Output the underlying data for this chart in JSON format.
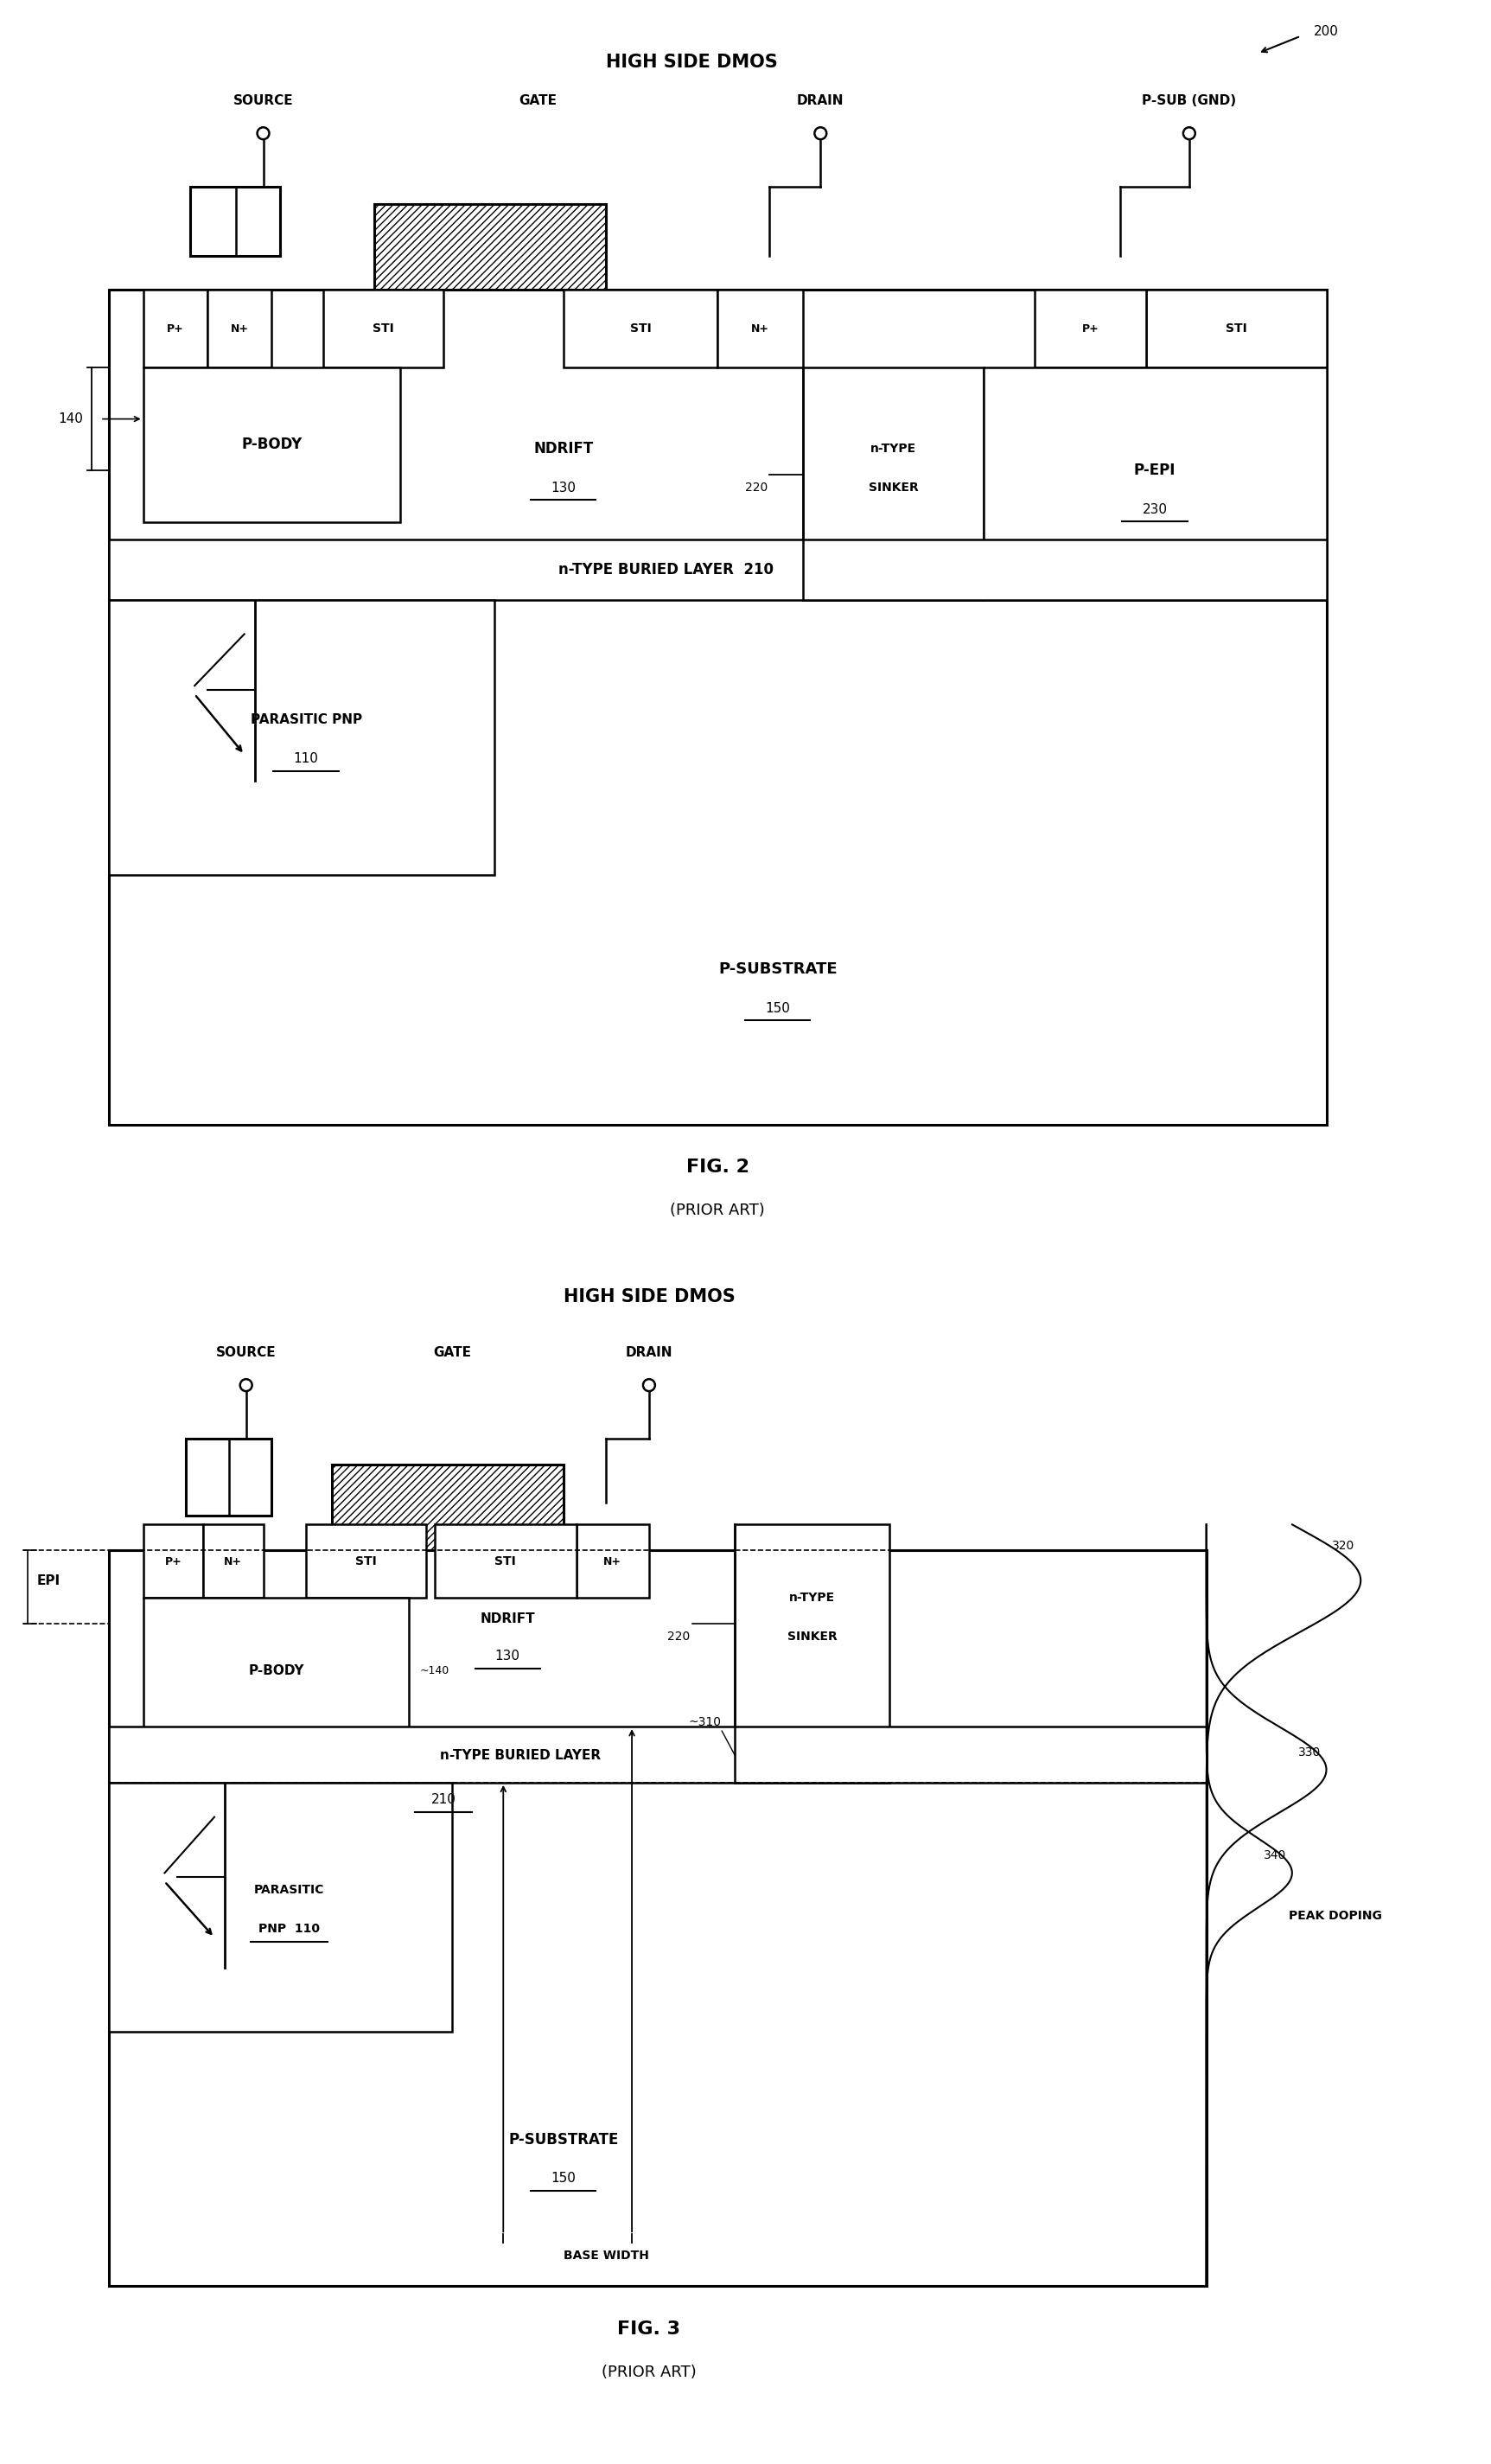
{
  "fig_width": 17.25,
  "fig_height": 28.5,
  "bg_color": "#ffffff",
  "fig2": {
    "title": "HIGH SIDE DMOS",
    "ref_num": "200",
    "source_label": "SOURCE",
    "drain_label": "DRAIN",
    "psub_label": "P-SUB (GND)",
    "gate_label": "GATE",
    "ndrift_label": "NDRIFT",
    "ndrift_num": "130",
    "sinker_label1": "n-TYPE",
    "sinker_label2": "SINKER",
    "sinker_num": "220",
    "pbody_label": "P-BODY",
    "label_140": "140",
    "buried_label": "n-TYPE BURIED LAYER  210",
    "parasitic_label": "PARASITIC PNP",
    "parasitic_num": "110",
    "psubstrate_label": "P-SUBSTRATE",
    "psubstrate_num": "150",
    "pepi_label": "P-EPI",
    "pepi_num": "230",
    "sti_label": "STI",
    "np_label": "N+",
    "pp_label": "P+",
    "fig_label": "FIG. 2",
    "prior_art": "(PRIOR ART)"
  },
  "fig3": {
    "title": "HIGH SIDE DMOS",
    "epi_label": "EPI",
    "source_label": "SOURCE",
    "drain_label": "DRAIN",
    "gate_label": "GATE",
    "ndrift_label": "NDRIFT",
    "ndrift_num": "130",
    "sinker_label1": "n-TYPE",
    "sinker_label2": "SINKER",
    "sinker_num": "220",
    "pbody_label": "P-BODY",
    "label_140": "~140",
    "buried_label": "n-TYPE BURIED LAYER",
    "buried_num": "210",
    "parasitic_label1": "PARASITIC",
    "parasitic_label2": "PNP  110",
    "psubstrate_label": "P-SUBSTRATE",
    "psubstrate_num": "150",
    "base_width_label": "BASE WIDTH",
    "peak_doping_label": "PEAK DOPING",
    "num_310": "~310",
    "num_320": "320",
    "num_330": "330",
    "num_340": "340",
    "fig_label": "FIG. 3",
    "prior_art": "(PRIOR ART)"
  }
}
